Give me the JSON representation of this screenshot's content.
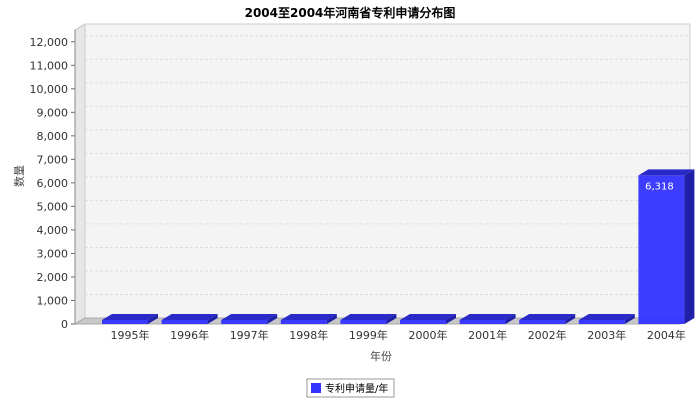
{
  "chart_data": {
    "type": "bar",
    "title": "2004至2004年河南省专利申请分布图",
    "xlabel": "年份",
    "ylabel": "数量",
    "categories": [
      "1995年",
      "1996年",
      "1997年",
      "1998年",
      "1999年",
      "2000年",
      "2001年",
      "2002年",
      "2003年",
      "2004年"
    ],
    "series": [
      {
        "name": "专利申请量/年",
        "values": [
          0,
          0,
          0,
          0,
          0,
          0,
          0,
          0,
          0,
          6318
        ]
      }
    ],
    "data_labels": [
      "",
      "",
      "",
      "",
      "",
      "",
      "",
      "",
      "",
      "6,318"
    ],
    "ylim": [
      0,
      12500
    ],
    "yticks": [
      0,
      1000,
      2000,
      3000,
      4000,
      5000,
      6000,
      7000,
      8000,
      9000,
      10000,
      11000,
      12000
    ],
    "ytick_labels": [
      "0",
      "1,000",
      "2,000",
      "3,000",
      "4,000",
      "5,000",
      "6,000",
      "7,000",
      "8,000",
      "9,000",
      "10,000",
      "11,000",
      "12,000"
    ],
    "grid": true,
    "legend_position": "bottom",
    "colors": {
      "bar": "#3333ff",
      "bar_top": "#2a2ac8",
      "bar_side": "#1f1fa8",
      "wall": "#f4f4f4",
      "floor": "#c8c8c8",
      "grid": "#dddddd"
    }
  }
}
